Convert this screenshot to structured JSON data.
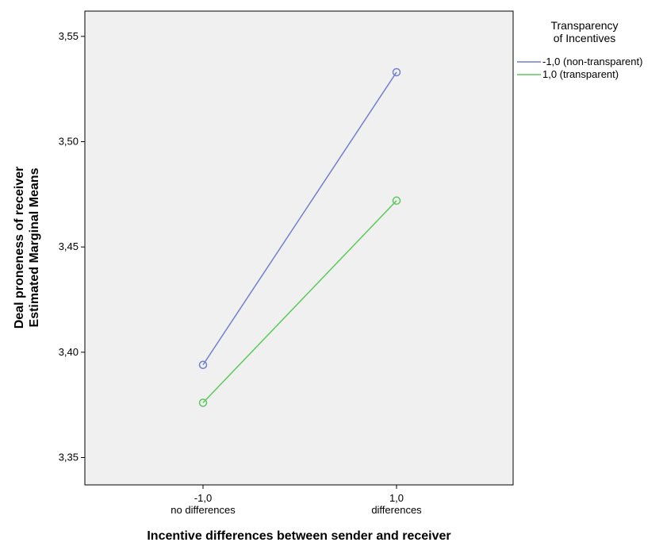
{
  "chart_data": {
    "type": "line",
    "xlabel": "Incentive differences between sender and receiver",
    "ylabel_lines": [
      "Deal proneness of receiver",
      "Estimated Marginal Means"
    ],
    "categories": [
      {
        "value": "-1,0",
        "label": "no differences"
      },
      {
        "value": "1,0",
        "label": "differences"
      }
    ],
    "yticks": [
      "3,35",
      "3,40",
      "3,45",
      "3,50",
      "3,55"
    ],
    "ytick_values": [
      3.35,
      3.4,
      3.45,
      3.5,
      3.55
    ],
    "ylim": [
      3.337,
      3.562
    ],
    "legend": {
      "title_lines": [
        "Transparency",
        "of Incentives"
      ],
      "placement": "right"
    },
    "series": [
      {
        "name": "-1,0 (non-transparent)",
        "color": "#7080c8",
        "values": [
          3.394,
          3.533
        ]
      },
      {
        "name": "1,0 (transparent)",
        "color": "#5cc85c",
        "values": [
          3.376,
          3.472
        ]
      }
    ],
    "plot_background": "#f0f0f0",
    "grid": false,
    "markers": "open-circle"
  }
}
